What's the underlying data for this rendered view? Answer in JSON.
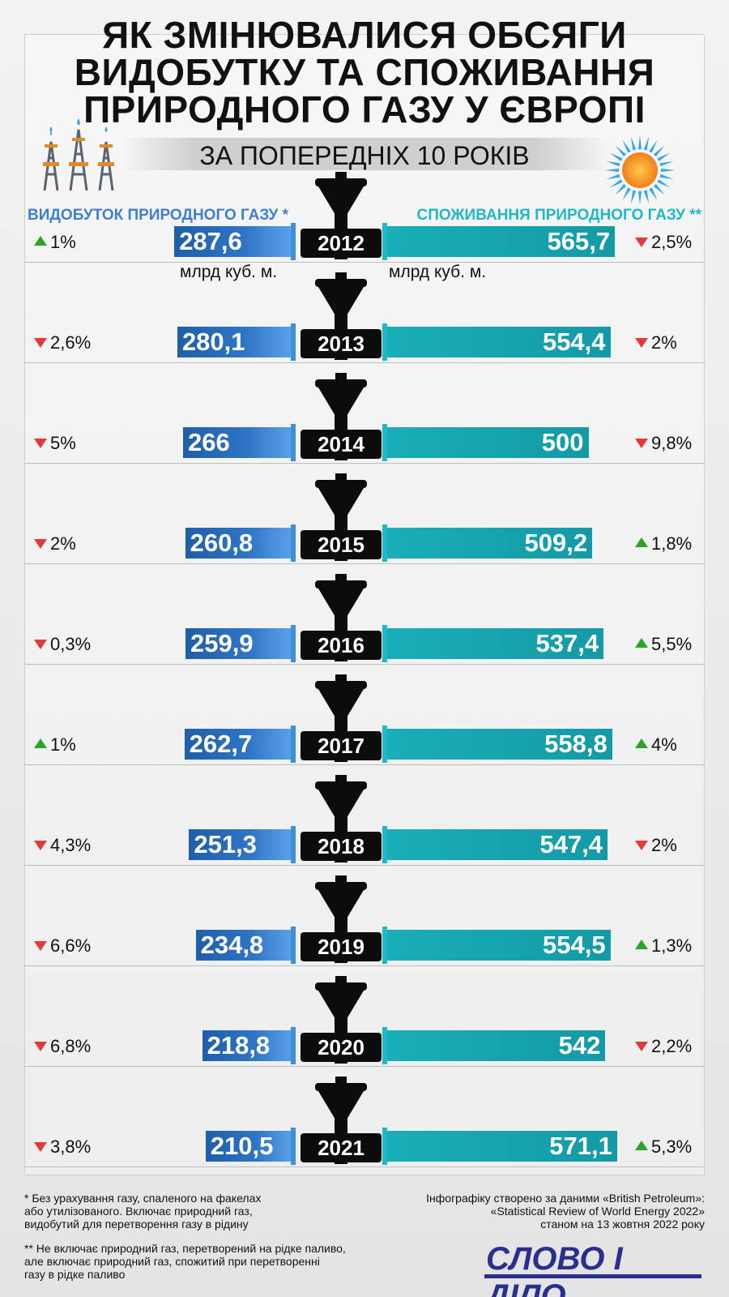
{
  "title_lines": [
    "ЯК ЗМІНЮВАЛИСЯ ОБСЯГИ",
    "ВИДОБУТКУ ТА СПОЖИВАННЯ",
    "ПРИРОДНОГО ГАЗУ У ЄВРОПІ"
  ],
  "subtitle": "ЗА ПОПЕРЕДНІХ 10 РОКІВ",
  "left_header": "ВИДОБУТОК ПРИРОДНОГО ГАЗУ *",
  "right_header": "СПОЖИВАННЯ ПРИРОДНОГО ГАЗУ **",
  "unit_left": "млрд куб. м.",
  "unit_right": "млрд куб. м.",
  "colors": {
    "production": "#2f75c6",
    "consumption": "#1aaeb8",
    "increase": "#2aa52a",
    "decrease": "#e03a3a"
  },
  "chart_data": {
    "type": "bar",
    "categories": [
      "2012",
      "2013",
      "2014",
      "2015",
      "2016",
      "2017",
      "2018",
      "2019",
      "2020",
      "2021"
    ],
    "series": [
      {
        "name": "ВИДОБУТОК ПРИРОДНОГО ГАЗУ *",
        "values": [
          287.6,
          280.1,
          266,
          260.8,
          259.9,
          262.7,
          251.3,
          234.8,
          218.8,
          210.5
        ],
        "labels": [
          "287,6",
          "280,1",
          "266",
          "260,8",
          "259,9",
          "262,7",
          "251,3",
          "234,8",
          "218,8",
          "210,5"
        ],
        "change": [
          "1%",
          "2,6%",
          "5%",
          "2%",
          "0,3%",
          "1%",
          "4,3%",
          "6,6%",
          "6,8%",
          "3,8%"
        ],
        "direction": [
          "up",
          "down",
          "down",
          "down",
          "down",
          "up",
          "down",
          "down",
          "down",
          "down"
        ]
      },
      {
        "name": "СПОЖИВАННЯ ПРИРОДНОГО ГАЗУ **",
        "values": [
          565.7,
          554.4,
          500,
          509.2,
          537.4,
          558.8,
          547.4,
          554.5,
          542,
          571.1
        ],
        "labels": [
          "565,7",
          "554,4",
          "500",
          "509,2",
          "537,4",
          "558,8",
          "547,4",
          "554,5",
          "542",
          "571,1"
        ],
        "change": [
          "2,5%",
          "2%",
          "9,8%",
          "1,8%",
          "5,5%",
          "4%",
          "2%",
          "1,3%",
          "2,2%",
          "5,3%"
        ],
        "direction": [
          "down",
          "down",
          "down",
          "up",
          "up",
          "up",
          "down",
          "up",
          "down",
          "up"
        ]
      }
    ]
  },
  "footnotes": {
    "note1": [
      "* Без урахування газу, спаленого на факелах",
      "або утилізованого. Включає природний газ,",
      "видобутий для перетворення газу в рідину"
    ],
    "note2": [
      "** Не включає природний газ, перетворений на рідке паливо,",
      "але включає природний газ, спожитий при перетворенні",
      "газу в рідке паливо"
    ],
    "source": [
      "Інфографіку створено за даними «British Petroleum»:",
      "«Statistical Review of World Energy 2022»",
      "станом на 13 жовтня 2022 року"
    ]
  },
  "logo_text": "СЛОВО І ДІЛО",
  "icons": {
    "rig": "gas-rig-icon",
    "sun": "sun-icon",
    "valve": "valve-icon"
  }
}
